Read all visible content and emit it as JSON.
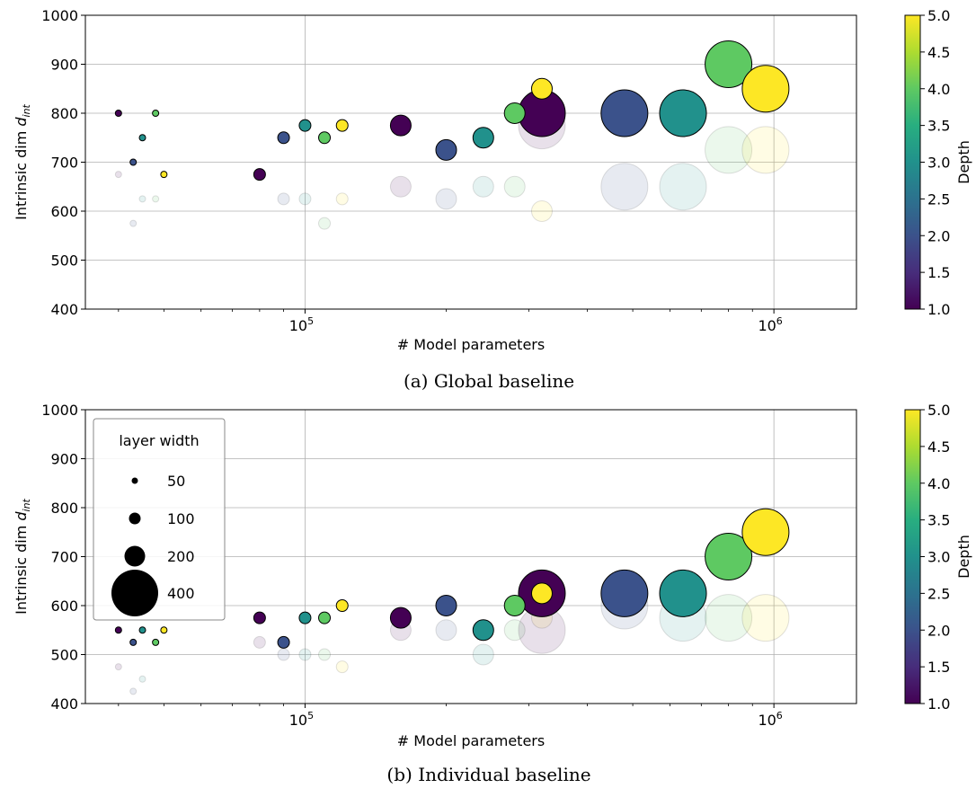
{
  "chart_data": [
    {
      "type": "scatter",
      "caption": "(a) Global baseline",
      "xlabel": "# Model parameters",
      "ylabel_main": "Intrinsic dim ",
      "ylabel_italic": "d",
      "ylabel_sub": "int",
      "x_scale": "log",
      "xlim": [
        34000,
        1500000
      ],
      "ylim": [
        400,
        1000
      ],
      "x_ticks": [
        {
          "value": 100000,
          "base": "10",
          "exp": "5"
        },
        {
          "value": 1000000,
          "base": "10",
          "exp": "6"
        }
      ],
      "y_ticks": [
        "400",
        "500",
        "600",
        "700",
        "800",
        "900",
        "1000"
      ],
      "grid": true,
      "colorbar": {
        "label": "Depth",
        "range": [
          1.0,
          5.0
        ],
        "ticks": [
          "1.0",
          "1.5",
          "2.0",
          "2.5",
          "3.0",
          "3.5",
          "4.0",
          "4.5",
          "5.0"
        ],
        "colormap": "viridis"
      },
      "points": [
        {
          "x": 40000,
          "y": 800,
          "depth": 1,
          "width": 50
        },
        {
          "x": 43000,
          "y": 700,
          "depth": 2,
          "width": 50
        },
        {
          "x": 45000,
          "y": 750,
          "depth": 3,
          "width": 50
        },
        {
          "x": 48000,
          "y": 800,
          "depth": 4,
          "width": 50
        },
        {
          "x": 50000,
          "y": 675,
          "depth": 5,
          "width": 50
        },
        {
          "x": 80000,
          "y": 675,
          "depth": 1,
          "width": 100
        },
        {
          "x": 90000,
          "y": 750,
          "depth": 2,
          "width": 100
        },
        {
          "x": 100000,
          "y": 775,
          "depth": 3,
          "width": 100
        },
        {
          "x": 110000,
          "y": 750,
          "depth": 4,
          "width": 100
        },
        {
          "x": 120000,
          "y": 775,
          "depth": 5,
          "width": 100
        },
        {
          "x": 160000,
          "y": 775,
          "depth": 1,
          "width": 200
        },
        {
          "x": 200000,
          "y": 725,
          "depth": 2,
          "width": 200
        },
        {
          "x": 240000,
          "y": 750,
          "depth": 3,
          "width": 200
        },
        {
          "x": 280000,
          "y": 800,
          "depth": 4,
          "width": 200
        },
        {
          "x": 320000,
          "y": 850,
          "depth": 5,
          "width": 200
        },
        {
          "x": 320000,
          "y": 800,
          "depth": 1,
          "width": 400
        },
        {
          "x": 480000,
          "y": 800,
          "depth": 2,
          "width": 400
        },
        {
          "x": 640000,
          "y": 800,
          "depth": 3,
          "width": 400
        },
        {
          "x": 800000,
          "y": 900,
          "depth": 4,
          "width": 400
        },
        {
          "x": 960000,
          "y": 850,
          "depth": 5,
          "width": 400
        }
      ],
      "faded_points": [
        {
          "x": 40000,
          "y": 675,
          "depth": 1,
          "width": 50
        },
        {
          "x": 43000,
          "y": 575,
          "depth": 2,
          "width": 50
        },
        {
          "x": 45000,
          "y": 625,
          "depth": 3,
          "width": 50
        },
        {
          "x": 48000,
          "y": 625,
          "depth": 4,
          "width": 50
        },
        {
          "x": 90000,
          "y": 625,
          "depth": 2,
          "width": 100
        },
        {
          "x": 100000,
          "y": 625,
          "depth": 3,
          "width": 100
        },
        {
          "x": 110000,
          "y": 575,
          "depth": 4,
          "width": 100
        },
        {
          "x": 120000,
          "y": 625,
          "depth": 5,
          "width": 100
        },
        {
          "x": 160000,
          "y": 650,
          "depth": 1,
          "width": 200
        },
        {
          "x": 200000,
          "y": 625,
          "depth": 2,
          "width": 200
        },
        {
          "x": 240000,
          "y": 650,
          "depth": 3,
          "width": 200
        },
        {
          "x": 280000,
          "y": 650,
          "depth": 4,
          "width": 200
        },
        {
          "x": 320000,
          "y": 600,
          "depth": 5,
          "width": 200
        },
        {
          "x": 320000,
          "y": 775,
          "depth": 1,
          "width": 400
        },
        {
          "x": 480000,
          "y": 650,
          "depth": 2,
          "width": 400
        },
        {
          "x": 640000,
          "y": 650,
          "depth": 3,
          "width": 400
        },
        {
          "x": 800000,
          "y": 725,
          "depth": 4,
          "width": 400
        },
        {
          "x": 960000,
          "y": 725,
          "depth": 5,
          "width": 400
        }
      ]
    },
    {
      "type": "scatter",
      "caption": "(b) Individual baseline",
      "xlabel": "# Model parameters",
      "ylabel_main": "Intrinsic dim ",
      "ylabel_italic": "d",
      "ylabel_sub": "int",
      "x_scale": "log",
      "xlim": [
        34000,
        1500000
      ],
      "ylim": [
        400,
        1000
      ],
      "x_ticks": [
        {
          "value": 100000,
          "base": "10",
          "exp": "5"
        },
        {
          "value": 1000000,
          "base": "10",
          "exp": "6"
        }
      ],
      "y_ticks": [
        "400",
        "500",
        "600",
        "700",
        "800",
        "900",
        "1000"
      ],
      "grid": true,
      "colorbar": {
        "label": "Depth",
        "range": [
          1.0,
          5.0
        ],
        "ticks": [
          "1.0",
          "1.5",
          "2.0",
          "2.5",
          "3.0",
          "3.5",
          "4.0",
          "4.5",
          "5.0"
        ],
        "colormap": "viridis"
      },
      "legend": {
        "title": "layer width",
        "entries": [
          "50",
          "100",
          "200",
          "400"
        ],
        "placement": "upper-left"
      },
      "points": [
        {
          "x": 40000,
          "y": 550,
          "depth": 1,
          "width": 50
        },
        {
          "x": 43000,
          "y": 525,
          "depth": 2,
          "width": 50
        },
        {
          "x": 45000,
          "y": 550,
          "depth": 3,
          "width": 50
        },
        {
          "x": 48000,
          "y": 525,
          "depth": 4,
          "width": 50
        },
        {
          "x": 50000,
          "y": 550,
          "depth": 5,
          "width": 50
        },
        {
          "x": 80000,
          "y": 575,
          "depth": 1,
          "width": 100
        },
        {
          "x": 90000,
          "y": 525,
          "depth": 2,
          "width": 100
        },
        {
          "x": 100000,
          "y": 575,
          "depth": 3,
          "width": 100
        },
        {
          "x": 110000,
          "y": 575,
          "depth": 4,
          "width": 100
        },
        {
          "x": 120000,
          "y": 600,
          "depth": 5,
          "width": 100
        },
        {
          "x": 160000,
          "y": 575,
          "depth": 1,
          "width": 200
        },
        {
          "x": 200000,
          "y": 600,
          "depth": 2,
          "width": 200
        },
        {
          "x": 240000,
          "y": 550,
          "depth": 3,
          "width": 200
        },
        {
          "x": 280000,
          "y": 600,
          "depth": 4,
          "width": 200
        },
        {
          "x": 320000,
          "y": 625,
          "depth": 1,
          "width": 400
        },
        {
          "x": 320000,
          "y": 625,
          "depth": 5,
          "width": 200
        },
        {
          "x": 480000,
          "y": 625,
          "depth": 2,
          "width": 400
        },
        {
          "x": 640000,
          "y": 625,
          "depth": 3,
          "width": 400
        },
        {
          "x": 800000,
          "y": 700,
          "depth": 4,
          "width": 400
        },
        {
          "x": 960000,
          "y": 750,
          "depth": 5,
          "width": 400
        }
      ],
      "faded_points": [
        {
          "x": 40000,
          "y": 475,
          "depth": 1,
          "width": 50
        },
        {
          "x": 43000,
          "y": 425,
          "depth": 2,
          "width": 50
        },
        {
          "x": 45000,
          "y": 450,
          "depth": 3,
          "width": 50
        },
        {
          "x": 80000,
          "y": 525,
          "depth": 1,
          "width": 100
        },
        {
          "x": 90000,
          "y": 500,
          "depth": 2,
          "width": 100
        },
        {
          "x": 100000,
          "y": 500,
          "depth": 3,
          "width": 100
        },
        {
          "x": 110000,
          "y": 500,
          "depth": 4,
          "width": 100
        },
        {
          "x": 120000,
          "y": 475,
          "depth": 5,
          "width": 100
        },
        {
          "x": 160000,
          "y": 550,
          "depth": 1,
          "width": 200
        },
        {
          "x": 200000,
          "y": 550,
          "depth": 2,
          "width": 200
        },
        {
          "x": 240000,
          "y": 500,
          "depth": 3,
          "width": 200
        },
        {
          "x": 280000,
          "y": 550,
          "depth": 4,
          "width": 200
        },
        {
          "x": 320000,
          "y": 575,
          "depth": 5,
          "width": 200
        },
        {
          "x": 320000,
          "y": 550,
          "depth": 1,
          "width": 400
        },
        {
          "x": 480000,
          "y": 600,
          "depth": 2,
          "width": 400
        },
        {
          "x": 640000,
          "y": 575,
          "depth": 3,
          "width": 400
        },
        {
          "x": 800000,
          "y": 575,
          "depth": 4,
          "width": 400
        },
        {
          "x": 960000,
          "y": 575,
          "depth": 5,
          "width": 400
        }
      ]
    }
  ]
}
